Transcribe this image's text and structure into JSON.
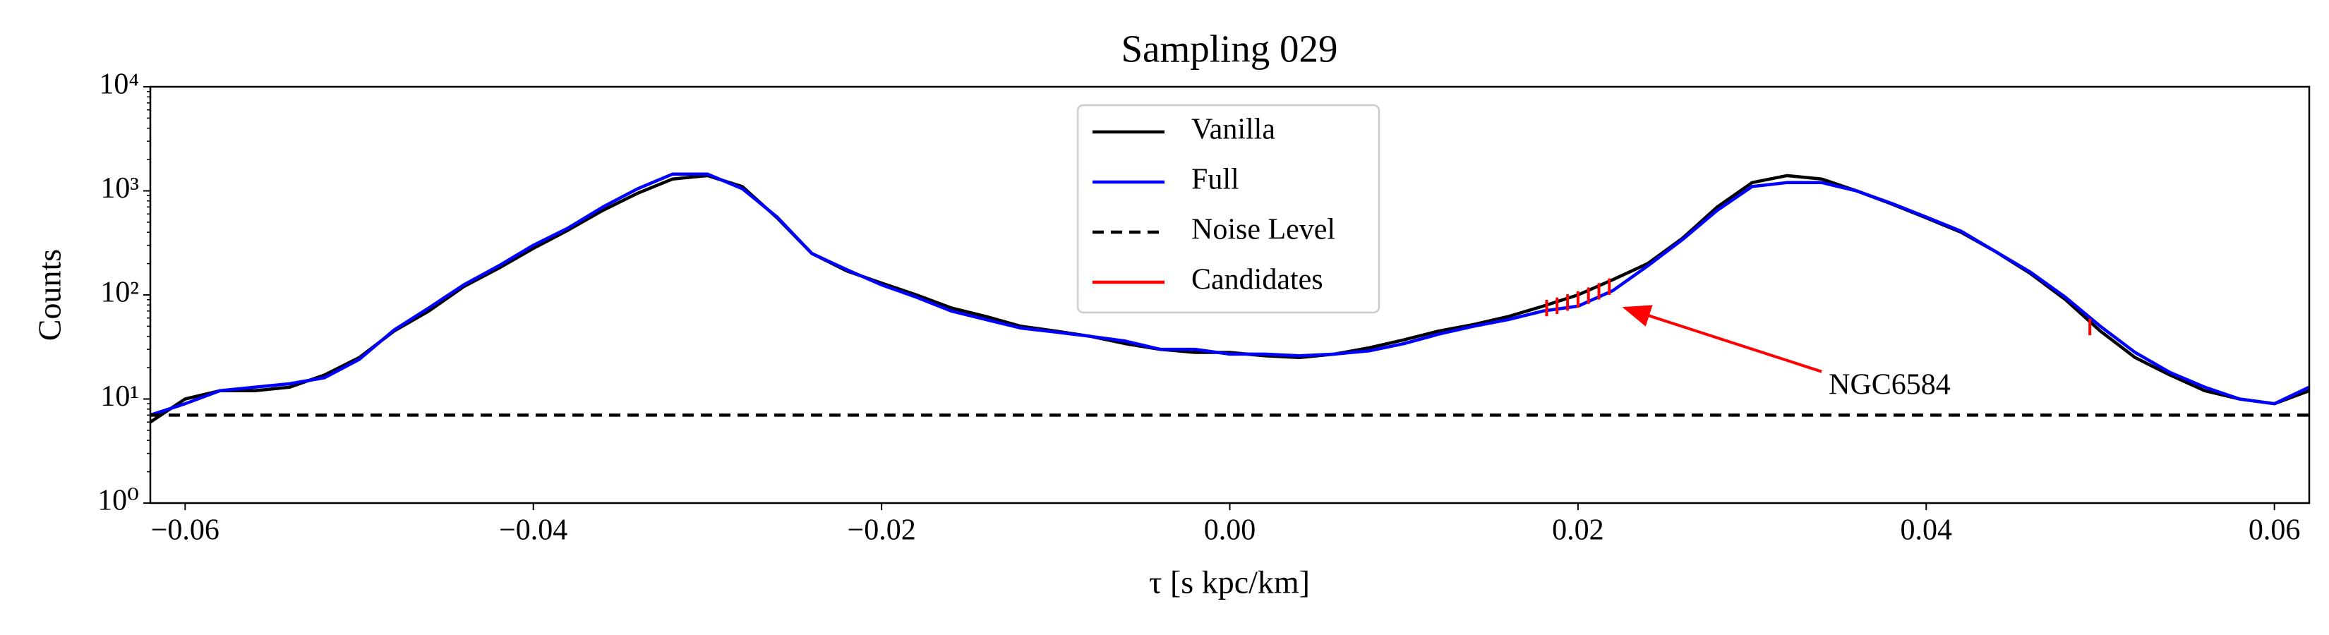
{
  "chart_data": {
    "type": "line",
    "title": "Sampling 029",
    "xlabel": "τ [s kpc/km]",
    "ylabel": "Counts",
    "log_y": true,
    "grid": false,
    "legend": "upper center",
    "xlim": [
      -0.062,
      0.062
    ],
    "xticks": [
      {
        "value": -0.06,
        "label": "−0.06"
      },
      {
        "value": -0.04,
        "label": "−0.04"
      },
      {
        "value": -0.02,
        "label": "−0.02"
      },
      {
        "value": 0,
        "label": "0.00"
      },
      0.02,
      0.04,
      0.06
    ],
    "ylim": [
      1,
      10000
    ],
    "yticks": [
      {
        "value": 1,
        "label": "10⁰"
      },
      {
        "value": 10,
        "label": "10¹"
      },
      {
        "value": 100,
        "label": "10²"
      },
      {
        "value": 1000,
        "label": "10³"
      },
      {
        "value": 10000,
        "label": "10⁴"
      }
    ],
    "x": [
      -0.062,
      -0.06,
      -0.058,
      -0.056,
      -0.054,
      -0.052,
      -0.05,
      -0.048,
      -0.046,
      -0.044,
      -0.042,
      -0.04,
      -0.038,
      -0.036,
      -0.034,
      -0.032,
      -0.03,
      -0.028,
      -0.026,
      -0.024,
      -0.022,
      -0.02,
      -0.018,
      -0.016,
      -0.014,
      -0.012,
      -0.01,
      -0.008,
      -0.006,
      -0.004,
      -0.002,
      0,
      0.002,
      0.004,
      0.006,
      0.008,
      0.01,
      0.012,
      0.014,
      0.016,
      0.018,
      0.02,
      0.022,
      0.024,
      0.026,
      0.028,
      0.03,
      0.032,
      0.034,
      0.036,
      0.038,
      0.04,
      0.042,
      0.044,
      0.046,
      0.048,
      0.05,
      0.052,
      0.054,
      0.056,
      0.058,
      0.06,
      0.062
    ],
    "series": [
      {
        "name": "Vanilla",
        "style": "line",
        "color": "#000000",
        "values": [
          6,
          10,
          12,
          12,
          13,
          17,
          25,
          45,
          70,
          120,
          180,
          280,
          420,
          650,
          950,
          1300,
          1400,
          1100,
          550,
          250,
          170,
          130,
          100,
          75,
          62,
          50,
          45,
          40,
          34,
          30,
          28,
          28,
          26,
          25,
          27,
          31,
          37,
          45,
          52,
          62,
          78,
          100,
          140,
          200,
          350,
          700,
          1200,
          1400,
          1300,
          1000,
          750,
          550,
          400,
          260,
          160,
          90,
          45,
          25,
          17,
          12,
          10,
          9,
          12
        ]
      },
      {
        "name": "Full",
        "style": "line",
        "color": "#0000ff",
        "values": [
          7,
          9,
          12,
          13,
          14,
          16,
          24,
          46,
          75,
          125,
          190,
          300,
          440,
          700,
          1050,
          1450,
          1450,
          1050,
          560,
          250,
          175,
          125,
          95,
          70,
          58,
          48,
          44,
          40,
          36,
          30,
          30,
          27,
          27,
          26,
          27,
          29,
          34,
          42,
          50,
          58,
          70,
          78,
          110,
          190,
          340,
          650,
          1100,
          1200,
          1200,
          1000,
          760,
          560,
          410,
          260,
          165,
          95,
          50,
          28,
          18,
          13,
          10,
          9,
          13
        ]
      },
      {
        "name": "Noise Level",
        "style": "hline",
        "color": "#000000",
        "value": 7
      },
      {
        "name": "Candidates",
        "style": "hatch",
        "color": "#ff0000",
        "x": [
          0.0182,
          0.0188,
          0.0194,
          0.02,
          0.0206,
          0.0212,
          0.0218,
          0.0494
        ],
        "values": [
          76,
          80,
          86,
          92,
          100,
          110,
          122,
          50
        ]
      }
    ],
    "annotations": [
      {
        "text": "NGC6584",
        "x": 0.0227,
        "y": 75,
        "text_x": 0.0344,
        "text_y": 13,
        "color": "#ff0000"
      }
    ]
  }
}
